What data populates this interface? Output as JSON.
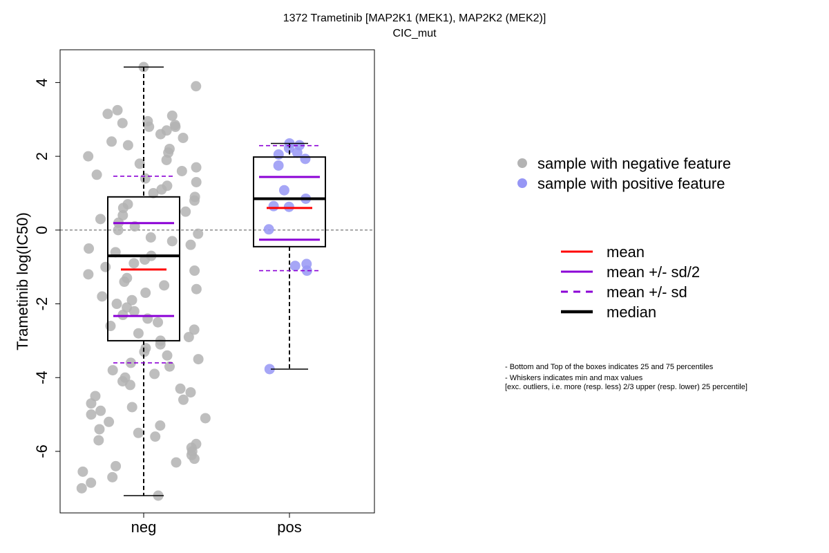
{
  "chart_data": {
    "type": "scatter",
    "title": "1372 Trametinib [MAP2K1 (MEK1), MAP2K2 (MEK2)]",
    "subtitle": "CIC_mut",
    "ylabel": "Trametinib log(IC50)",
    "xlabel": "",
    "ylim": [
      -7.5,
      4.9
    ],
    "yticks": [
      -6,
      -4,
      -2,
      0,
      2,
      4
    ],
    "categories": [
      "neg",
      "pos"
    ],
    "reference_line": 0,
    "colors": {
      "neg_points": "#b3b3b3",
      "pos_points": "#9696f5",
      "mean": "#ff0000",
      "sd": "#8b00d6",
      "median": "#000000"
    },
    "groups": [
      {
        "name": "neg",
        "min": -7.2,
        "q1": -3.0,
        "median": -0.7,
        "q3": 0.9,
        "max": 4.42,
        "mean": -1.07,
        "mean_minus_half_sd": -2.33,
        "mean_plus_half_sd": 0.19,
        "mean_minus_sd": -3.6,
        "mean_plus_sd": 1.46,
        "points": [
          4.42,
          3.9,
          3.25,
          3.15,
          3.1,
          2.95,
          2.9,
          2.85,
          2.8,
          2.8,
          2.7,
          2.6,
          2.5,
          2.4,
          2.3,
          2.2,
          2.1,
          2.0,
          1.9,
          1.8,
          1.7,
          1.6,
          1.5,
          1.4,
          1.3,
          1.2,
          1.1,
          1.0,
          0.9,
          0.8,
          0.7,
          0.6,
          0.5,
          0.4,
          0.3,
          0.2,
          0.1,
          0.0,
          -0.1,
          -0.2,
          -0.3,
          -0.4,
          -0.5,
          -0.6,
          -0.7,
          -0.8,
          -0.9,
          -1.0,
          -1.1,
          -1.2,
          -1.3,
          -1.4,
          -1.5,
          -1.6,
          -1.7,
          -1.8,
          -1.9,
          -2.0,
          -2.1,
          -2.2,
          -2.3,
          -2.4,
          -2.5,
          -2.6,
          -2.7,
          -2.8,
          -2.9,
          -3.0,
          -3.1,
          -3.2,
          -3.3,
          -3.4,
          -3.5,
          -3.6,
          -3.7,
          -3.8,
          -3.9,
          -4.0,
          -4.1,
          -4.2,
          -4.3,
          -4.4,
          -4.5,
          -4.6,
          -4.7,
          -4.8,
          -4.9,
          -5.0,
          -5.1,
          -5.2,
          -5.3,
          -5.4,
          -5.5,
          -5.6,
          -5.7,
          -5.8,
          -5.9,
          -6.0,
          -6.1,
          -6.2,
          -6.3,
          -6.4,
          -6.55,
          -6.7,
          -6.85,
          -7.0,
          -7.2
        ]
      },
      {
        "name": "pos",
        "min": -3.77,
        "q1": -0.45,
        "median": 0.85,
        "q3": 1.98,
        "max": 2.35,
        "mean": 0.6,
        "mean_minus_half_sd": -0.26,
        "mean_plus_half_sd": 1.44,
        "mean_minus_sd": -1.1,
        "mean_plus_sd": 2.29,
        "points": [
          2.35,
          2.3,
          2.22,
          2.1,
          2.05,
          1.93,
          1.75,
          1.08,
          0.85,
          0.65,
          0.63,
          0.02,
          -0.92,
          -0.97,
          -1.1,
          -3.77
        ]
      }
    ],
    "legend_points": [
      {
        "label": "sample with negative feature"
      },
      {
        "label": "sample with positive feature"
      }
    ],
    "legend_lines": [
      {
        "label": "mean"
      },
      {
        "label": "mean +/- sd/2"
      },
      {
        "label": "mean +/- sd"
      },
      {
        "label": "median"
      }
    ],
    "notes": [
      "- Bottom and Top of the boxes indicates 25 and 75 percentiles",
      "- Whiskers indicates min and max values",
      "[exc. outliers, i.e. more (resp. less) 2/3 upper (resp. lower) 25 percentile]"
    ]
  }
}
